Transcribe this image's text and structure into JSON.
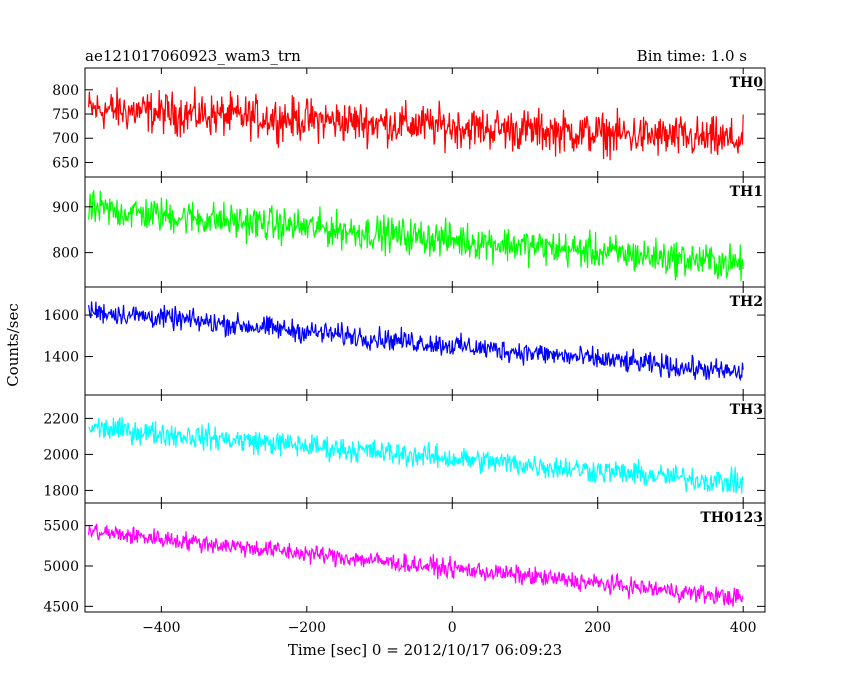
{
  "header": {
    "title": "ae121017060923_wam3_trn",
    "bin_time": "Bin time: 1.0 s"
  },
  "chart_data": {
    "type": "line",
    "title": "ae121017060923_wam3_trn",
    "subtitle": "Bin time: 1.0 s",
    "xlabel": "Time [sec] 0 = 2012/10/17 06:09:23",
    "ylabel": "Counts/sec",
    "xlim": [
      -505,
      430
    ],
    "xticks": [
      -400,
      -200,
      0,
      200,
      400
    ],
    "grid": false,
    "panels": [
      {
        "name": "TH0",
        "color": "#ff0000",
        "ylim": [
          620,
          845
        ],
        "yticks": [
          650,
          700,
          750,
          800
        ],
        "x": [
          -500,
          400
        ],
        "trend": [
          760,
          695
        ],
        "noise_amplitude": 45
      },
      {
        "name": "TH1",
        "color": "#00ff00",
        "ylim": [
          725,
          965
        ],
        "yticks": [
          800,
          900
        ],
        "x": [
          -500,
          400
        ],
        "trend": [
          895,
          775
        ],
        "noise_amplitude": 40
      },
      {
        "name": "TH2",
        "color": "#0000ff",
        "ylim": [
          1215,
          1735
        ],
        "yticks": [
          1400,
          1600
        ],
        "x": [
          -500,
          400
        ],
        "trend": [
          1620,
          1320
        ],
        "noise_amplitude": 55
      },
      {
        "name": "TH3",
        "color": "#00ffff",
        "ylim": [
          1730,
          2330
        ],
        "yticks": [
          1800,
          2000,
          2200
        ],
        "x": [
          -500,
          400
        ],
        "trend": [
          2150,
          1840
        ],
        "noise_amplitude": 70
      },
      {
        "name": "TH0123",
        "color": "#ff00ff",
        "ylim": [
          4430,
          5780
        ],
        "yticks": [
          4500,
          5000,
          5500
        ],
        "x": [
          -500,
          400
        ],
        "trend": [
          5430,
          4600
        ],
        "noise_amplitude": 120
      }
    ]
  }
}
